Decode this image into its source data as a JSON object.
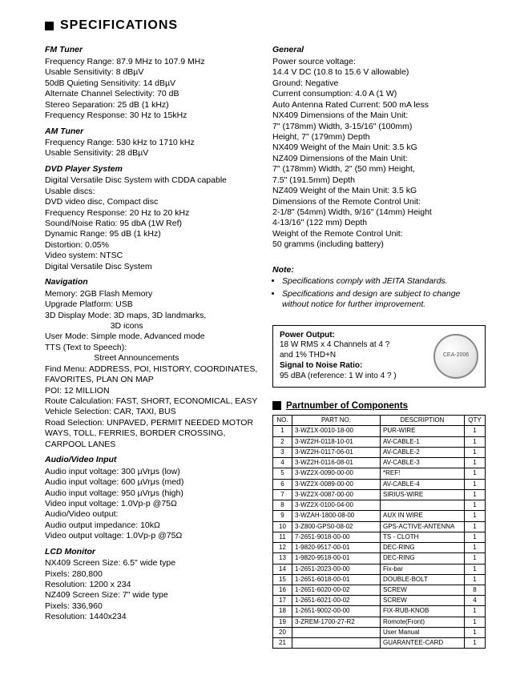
{
  "title": "SPECIFICATIONS",
  "leftSections": [
    {
      "heading": "FM Tuner",
      "lines": [
        "Frequency Range: 87.9 MHz to 107.9 MHz",
        "Usable Sensitivity: 8 dBµV",
        "50dB Quieting Sensitivity: 14 dBµV",
        "Alternate Channel Selectivity: 70 dB",
        "Stereo Separation: 25 dB (1 kHz)",
        "Frequency Response: 30 Hz to 15kHz"
      ]
    },
    {
      "heading": "AM Tuner",
      "lines": [
        "Frequency Range: 530 kHz to 1710 kHz",
        "Usable Sensitivity: 28 dBµV"
      ]
    },
    {
      "heading": "DVD Player System",
      "lines": [
        "Digital Versatile Disc System with CDDA capable",
        "Usable discs:",
        "DVD video disc, Compact disc",
        "Frequency Response: 20 Hz to 20 kHz",
        "Sound/Noise Ratio: 95 dbA (1W Ref)",
        "Dynamic Range: 95 dB (1 kHz)",
        "Distortion: 0.05%",
        "Video system: NTSC",
        "Digital Versatile Disc System"
      ]
    },
    {
      "heading": "Navigation",
      "lines": [
        "Memory: 2GB Flash Memory",
        "Upgrade Platform: USB",
        "3D Display Mode: 3D maps, 3D landmarks,",
        "                            3D icons",
        "User Mode: Simple mode, Advanced mode",
        "TTS (Text to Speech):",
        "                     Street Announcements",
        "Find Menu: ADDRESS, POI, HISTORY, COORDINATES, FAVORITES, PLAN ON MAP",
        "POI: 12 MILLION",
        "Route Calculation: FAST, SHORT, ECONOMICAL, EASY",
        "Vehicle Selection: CAR, TAXI, BUS",
        "Road Selection: UNPAVED, PERMIT NEEDED MOTOR WAYS, TOLL, FERRIES, BORDER CROSSING, CARPOOL LANES"
      ]
    },
    {
      "heading": "Audio/Video Input",
      "lines": [
        "Audio input voltage: 300 µVrμs (low)",
        "Audio input voltage: 600 µVrμs (med)",
        "Audio input voltage: 950 µVrμs (high)",
        "Video input voltage: 1.0Vp-p @75Ω",
        "Audio/Video output:",
        "Audio output impedance: 10kΩ",
        "Video output voltage: 1.0Vp-p @75Ω"
      ]
    },
    {
      "heading": "LCD Monitor",
      "lines": [
        "NX409 Screen Size: 6.5\" wide type",
        "Pixels: 280,800",
        "Resolution: 1200 x 234",
        "NZ409 Screen Size: 7\" wide type",
        "Pixels: 336,960",
        "Resolution: 1440x234"
      ]
    }
  ],
  "rightSections": [
    {
      "heading": "General",
      "lines": [
        "Power source voltage:",
        "14.4 V DC (10.8 to 15.6 V allowable)",
        "Ground: Negative",
        "Current consumption: 4.0 A (1 W)",
        "Auto Antenna Rated Current: 500 mA less",
        "NX409 Dimensions of the Main Unit:",
        "7\" (178mm) Width, 3-15/16\" (100mm)",
        "Height, 7\" (179mm) Depth",
        "NX409 Weight of the Main Unit: 3.5 kG",
        "NZ409 Dimensions of the Main Unit:",
        "7\" (178mm) Width, 2\" (50 mm) Height,",
        "7.5\" (191.5mm) Depth",
        "NZ409 Weight of the Main Unit: 3.5 kG",
        "Dimensions of the Remote Control Unit:",
        "2-1/8\" (54mm) Width, 9/16\" (14mm) Height",
        "4-13/16\" (122 mm) Depth",
        "Weight of the Remote Control Unit:",
        "50 gramms (including battery)"
      ]
    }
  ],
  "noteHeading": "Note:",
  "notes": [
    "Specifications comply with JEITA Standards.",
    "Specifications and design are subject to change without notice for further improvement."
  ],
  "powerBox": {
    "l1": "Power Output:",
    "l2": "18 W RMS x 4 Channels at 4 ?",
    "l2b": "and 1% THD+N",
    "l3": "Signal to Noise Ratio:",
    "l4": "95 dBA (reference: 1 W into 4 ? )",
    "seal": "CEA-2006"
  },
  "partsTitle": "Partnumber of Components",
  "partsHeaders": [
    "NO.",
    "PART NO.",
    "DESCRIPTION",
    "QTY"
  ],
  "parts": [
    [
      "1",
      "3-WZ1X-0010-18-00",
      "PUR-WIRE",
      "1"
    ],
    [
      "2",
      "3-WZ2H-0118-10-01",
      "AV-CABLE-1",
      "1"
    ],
    [
      "3",
      "3-WZ2H-0117-06-01",
      "AV-CABLE-2",
      "1"
    ],
    [
      "4",
      "3-WZ2H-0116-08-01",
      "AV-CABLE-3",
      "1"
    ],
    [
      "5",
      "3-WZ2X-0090-00-00",
      "*REF!",
      "1"
    ],
    [
      "6",
      "3-WZ2X-0089-00-00",
      "AV-CABLE-4",
      "1"
    ],
    [
      "7",
      "3-WZ2X-0087-00-00",
      "SIRIUS-WIRE",
      "1"
    ],
    [
      "8",
      "3-WZ2X-0100-04-00",
      "",
      "1"
    ],
    [
      "9",
      "3-WZAH-1800-08-00",
      "AUX IN WIRE",
      "1"
    ],
    [
      "10",
      "3-Z800-GPS0-08-02",
      "GPS-ACTIVE-ANTENNA",
      "1"
    ],
    [
      "11",
      "7-2651-9018-00-00",
      "TS - CLOTH",
      "1"
    ],
    [
      "12",
      "1-9820-9517-00-01",
      "DEC-RING",
      "1"
    ],
    [
      "13",
      "1-9820-9518-00-01",
      "DEC-RING",
      "1"
    ],
    [
      "14",
      "1-2651-2023-00-00",
      "Fix-bar",
      "1"
    ],
    [
      "15",
      "1-2651-6018-00-01",
      "DOUBLE-BOLT",
      "1"
    ],
    [
      "16",
      "1-2651-6020-00-02",
      "SCREW",
      "8"
    ],
    [
      "17",
      "1-2651-6021-00-02",
      "SCREW",
      "4"
    ],
    [
      "18",
      "1-2651-9002-00-00",
      "FIX-RUB-KNOB",
      "1"
    ],
    [
      "19",
      "3-ZREM-1700-27-R2",
      "Romote(Front)",
      "1"
    ],
    [
      "20",
      "",
      "User Manual",
      "1"
    ],
    [
      "21",
      "",
      "GUARANTEE-CARD",
      "1"
    ]
  ]
}
